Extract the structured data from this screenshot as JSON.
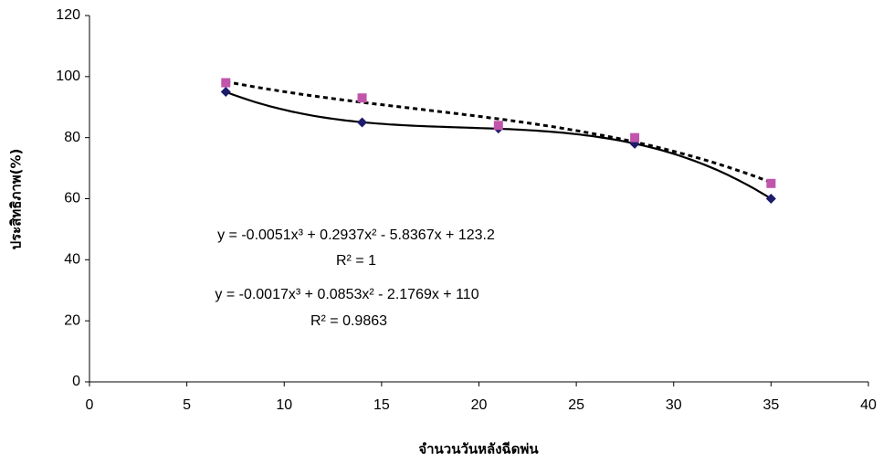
{
  "chart_data": {
    "type": "scatter",
    "x_label": "จำนวนวันหลังฉีดพ่น",
    "y_label": "ประสิทธิภาพ(%)",
    "x": [
      7,
      14,
      21,
      28,
      35
    ],
    "series": [
      {
        "color": "#1c1c6b",
        "marker": "diamond",
        "trendline": {
          "type": "polynomial",
          "order": 3,
          "style": "solid"
        },
        "values": [
          95,
          85,
          83,
          78,
          60
        ]
      },
      {
        "color": "#c155ab",
        "marker": "square",
        "trendline": {
          "type": "polynomial",
          "order": 3,
          "style": "dashed"
        },
        "values": [
          98,
          93,
          84,
          80,
          65
        ]
      }
    ],
    "annotations": [
      "y = -0.0051x³ + 0.2937x² - 5.8367x + 123.2",
      "R² = 1",
      "y = -0.0017x³ + 0.0853x² - 2.1769x + 110",
      "R² = 0.9863"
    ],
    "xlim": [
      0,
      40
    ],
    "xticks": [
      0,
      5,
      10,
      15,
      20,
      25,
      30,
      35,
      40
    ],
    "ylim": [
      0,
      120
    ],
    "yticks": [
      0,
      20,
      40,
      60,
      80,
      100,
      120
    ],
    "grid": false
  }
}
